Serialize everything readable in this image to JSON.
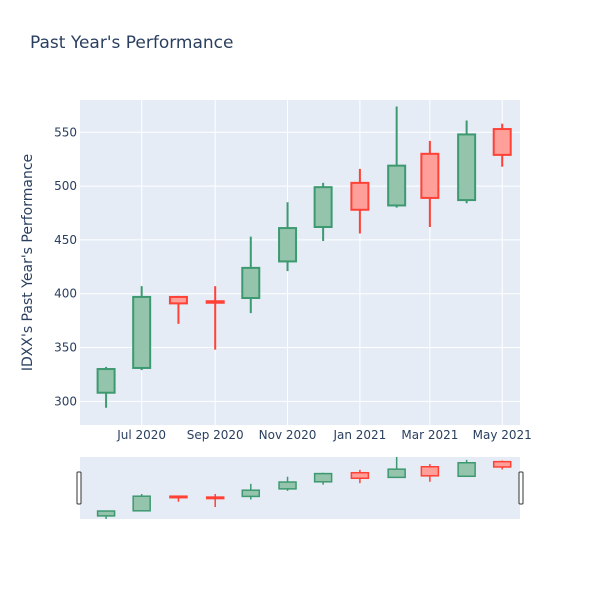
{
  "chart_data": {
    "type": "candlestick",
    "title": "Past Year's Performance",
    "ylabel": "IDXX's Past Year's Performance",
    "xlabel": "",
    "ylim": [
      278,
      580
    ],
    "y_ticks": [
      300,
      350,
      400,
      450,
      500,
      550
    ],
    "x_ticks": [
      {
        "label": "Jul 2020",
        "date": "2020-07-01"
      },
      {
        "label": "Sep 2020",
        "date": "2020-09-01"
      },
      {
        "label": "Nov 2020",
        "date": "2020-11-01"
      },
      {
        "label": "Jan 2021",
        "date": "2021-01-01"
      },
      {
        "label": "Mar 2021",
        "date": "2021-03-01"
      },
      {
        "label": "May 2021",
        "date": "2021-05-01"
      }
    ],
    "xlim": [
      "2020-05-10",
      "2021-05-16"
    ],
    "grid": true,
    "rangeslider": true,
    "colors": {
      "increasing_line": "#3d9970",
      "increasing_fill": "#94c4ac",
      "decreasing_line": "#ff4136",
      "decreasing_fill": "#fe9f9a",
      "plot_bg": "#e5ecf6",
      "text": "#2a3f5f"
    },
    "candles": [
      {
        "date": "2020-06-01",
        "open": 308,
        "high": 332,
        "low": 294,
        "close": 330
      },
      {
        "date": "2020-07-01",
        "open": 331,
        "high": 407,
        "low": 329,
        "close": 397
      },
      {
        "date": "2020-08-01",
        "open": 397,
        "high": 398,
        "low": 372,
        "close": 391
      },
      {
        "date": "2020-09-01",
        "open": 393,
        "high": 407,
        "low": 348,
        "close": 392
      },
      {
        "date": "2020-10-01",
        "open": 396,
        "high": 453,
        "low": 382,
        "close": 424
      },
      {
        "date": "2020-11-01",
        "open": 430,
        "high": 485,
        "low": 421,
        "close": 461
      },
      {
        "date": "2020-12-01",
        "open": 462,
        "high": 503,
        "low": 449,
        "close": 499
      },
      {
        "date": "2021-01-01",
        "open": 503,
        "high": 516,
        "low": 456,
        "close": 478
      },
      {
        "date": "2021-02-01",
        "open": 482,
        "high": 574,
        "low": 480,
        "close": 519
      },
      {
        "date": "2021-03-01",
        "open": 530,
        "high": 542,
        "low": 462,
        "close": 489
      },
      {
        "date": "2021-04-01",
        "open": 487,
        "high": 561,
        "low": 484,
        "close": 548
      },
      {
        "date": "2021-05-01",
        "open": 553,
        "high": 558,
        "low": 518,
        "close": 529
      }
    ]
  }
}
